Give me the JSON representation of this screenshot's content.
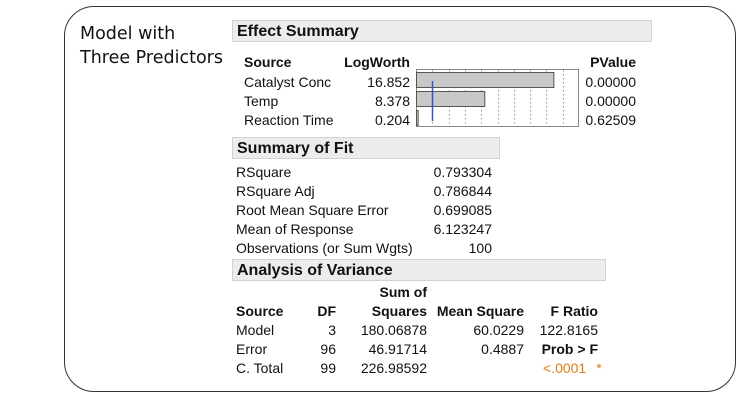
{
  "side_title": {
    "line1": "Model with",
    "line2": "Three Predictors"
  },
  "effect_summary": {
    "header": "Effect Summary",
    "columns": {
      "source": "Source",
      "logworth": "LogWorth",
      "pvalue": "PValue"
    },
    "rows": [
      {
        "source": "Catalyst Conc",
        "logworth": "16.852",
        "pvalue": "0.00000",
        "value": 16.852
      },
      {
        "source": "Temp",
        "logworth": "8.378",
        "pvalue": "0.00000",
        "value": 8.378
      },
      {
        "source": "Reaction Time",
        "logworth": "0.204",
        "pvalue": "0.62509",
        "value": 0.204
      }
    ],
    "bar_max": 20,
    "reference_line": 2,
    "bar_color": "#c8c8c8",
    "ref_color": "#3355cc"
  },
  "summary_of_fit": {
    "header": "Summary of Fit",
    "rows": [
      {
        "label": "RSquare",
        "value": "0.793304"
      },
      {
        "label": "RSquare Adj",
        "value": "0.786844"
      },
      {
        "label": "Root Mean Square Error",
        "value": "0.699085"
      },
      {
        "label": "Mean of Response",
        "value": "6.123247"
      },
      {
        "label": "Observations (or Sum Wgts)",
        "value": "100"
      }
    ]
  },
  "anova": {
    "header": "Analysis of Variance",
    "columns": {
      "source": "Source",
      "df": "DF",
      "ss_line1": "Sum of",
      "ss_line2": "Squares",
      "ms": "Mean Square",
      "f": "F Ratio",
      "prob": "Prob > F"
    },
    "rows": [
      {
        "source": "Model",
        "df": "3",
        "ss": "180.06878",
        "ms": "60.0229",
        "f": "122.8165"
      },
      {
        "source": "Error",
        "df": "96",
        "ss": "46.91714",
        "ms": "0.4887"
      },
      {
        "source": "C. Total",
        "df": "99",
        "ss": "226.98592"
      }
    ],
    "prob_value": "<.0001",
    "prob_star": "*",
    "prob_color": "#e07a10"
  }
}
